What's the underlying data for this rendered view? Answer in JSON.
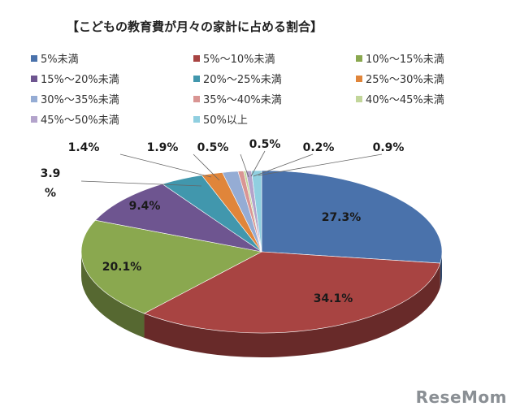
{
  "chart_data": {
    "type": "pie",
    "title": "【こどもの教育費が月々の家計に占める割合】",
    "categories": [
      "5%未満",
      "5%〜10%未満",
      "10%〜15%未満",
      "15%〜20%未満",
      "20%〜25%未満",
      "25%〜30%未満",
      "30%〜35%未満",
      "35%〜40%未満",
      "40%〜45%未満",
      "45%〜50%未満",
      "50%以上"
    ],
    "values": [
      27.3,
      34.1,
      20.1,
      9.4,
      3.9,
      1.9,
      1.4,
      0.5,
      0.2,
      0.5,
      0.9
    ],
    "data_labels": [
      "27.3%",
      "34.1%",
      "20.1%",
      "9.4%",
      "3.9\n%",
      "1.9%",
      "1.4%",
      "0.5%",
      "0.2%",
      "0.5%",
      "0.9%"
    ],
    "colors": [
      "#4a72ab",
      "#a84442",
      "#8aa84f",
      "#6e5590",
      "#4197ad",
      "#e0853a",
      "#95acd4",
      "#d99593",
      "#c2d69a",
      "#b3a3cb",
      "#90cfe0"
    ],
    "legend_position": "top",
    "style": "3d-pie"
  },
  "watermark": "ReseMom"
}
